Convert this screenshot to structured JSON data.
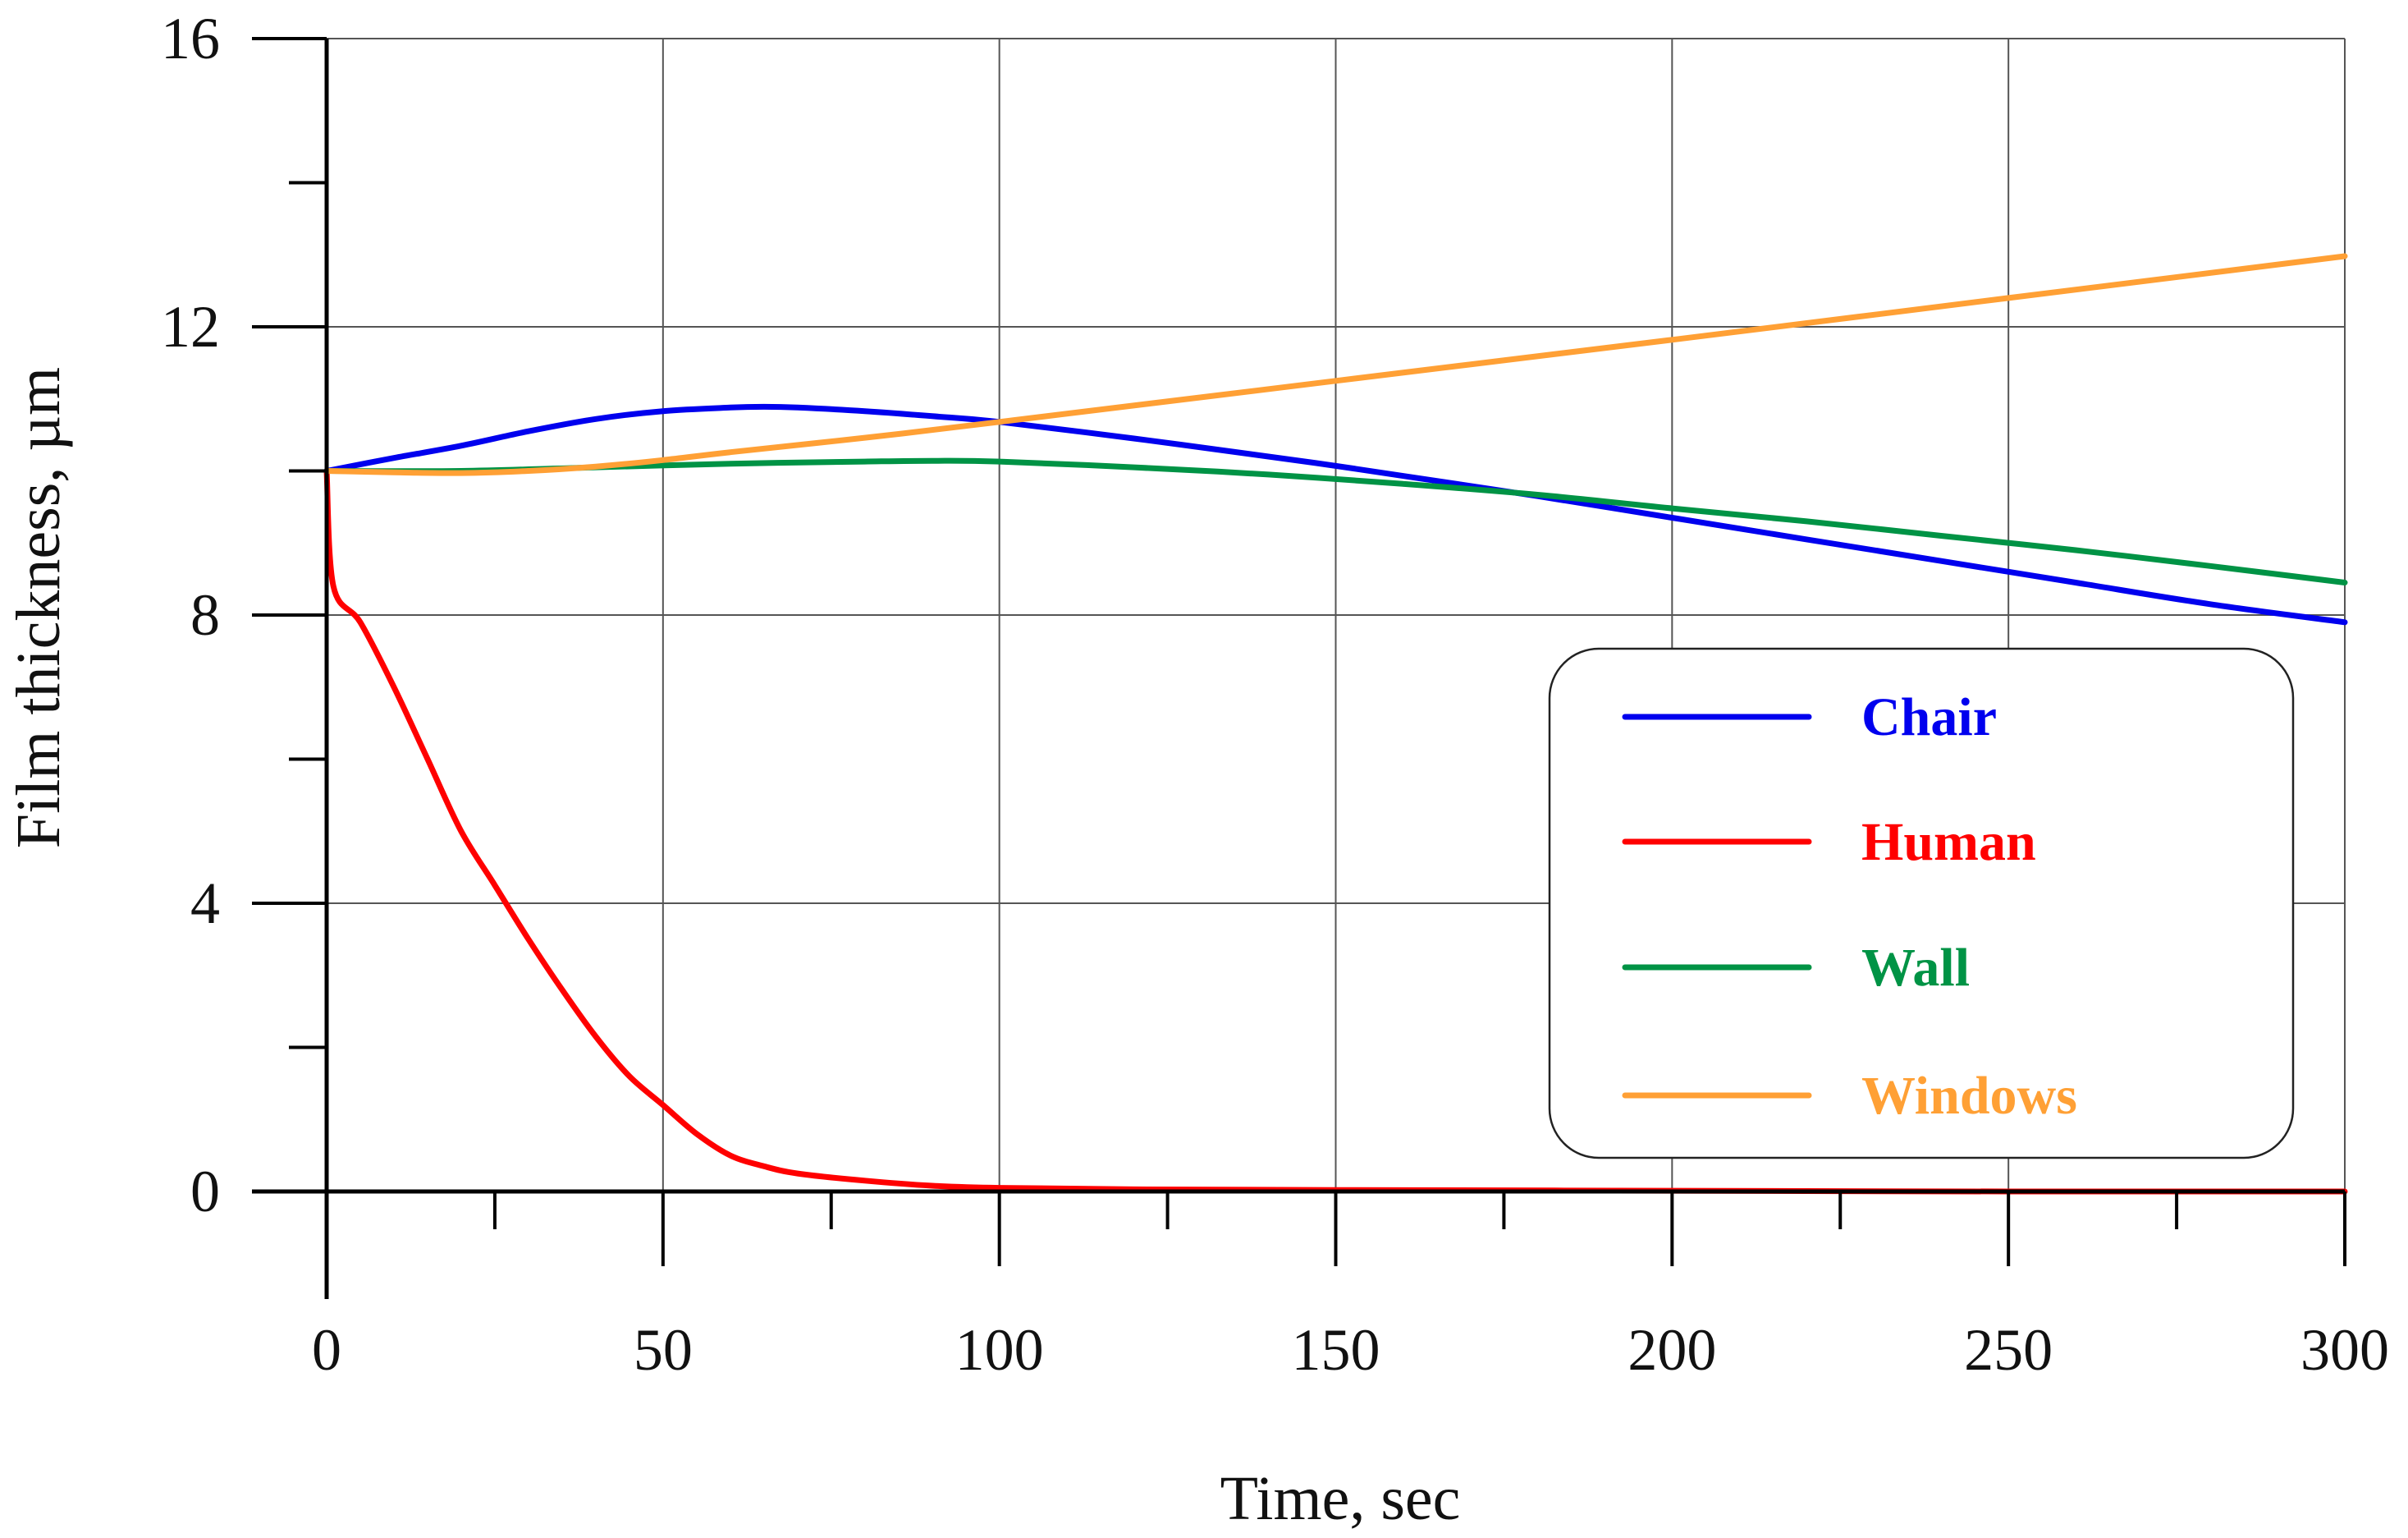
{
  "chart_data": {
    "type": "line",
    "title": "",
    "xlabel": "Time, sec",
    "ylabel": "Film thickness, µm",
    "xlim": [
      0,
      300
    ],
    "ylim": [
      0,
      16
    ],
    "x_ticks": [
      0,
      50,
      100,
      150,
      200,
      250,
      300
    ],
    "x_minor_ticks": [
      25,
      75,
      125,
      175,
      225,
      275
    ],
    "y_ticks": [
      0,
      4,
      8,
      12,
      16
    ],
    "y_minor_ticks": [
      2,
      6,
      10,
      14
    ],
    "grid": true,
    "legend_position": "right",
    "series": [
      {
        "name": "Chair",
        "color": "#0000ee",
        "x": [
          0,
          10,
          20,
          30,
          40,
          50,
          60,
          65,
          70,
          80,
          90,
          100,
          120,
          140,
          150,
          160,
          180,
          200,
          220,
          240,
          260,
          280,
          300
        ],
        "y": [
          10.0,
          10.18,
          10.35,
          10.55,
          10.72,
          10.83,
          10.88,
          10.89,
          10.88,
          10.83,
          10.76,
          10.68,
          10.45,
          10.2,
          10.07,
          9.93,
          9.65,
          9.35,
          9.05,
          8.75,
          8.45,
          8.15,
          7.9
        ]
      },
      {
        "name": "Human",
        "color": "#ff0000",
        "x": [
          0,
          1,
          5,
          10,
          15,
          20,
          25,
          30,
          35,
          40,
          45,
          50,
          55,
          60,
          65,
          70,
          80,
          90,
          100,
          120,
          150,
          200,
          250,
          300
        ],
        "y": [
          10.0,
          8.4,
          7.9,
          7.0,
          6.0,
          5.0,
          4.25,
          3.5,
          2.8,
          2.15,
          1.6,
          1.2,
          0.8,
          0.5,
          0.35,
          0.25,
          0.15,
          0.08,
          0.05,
          0.03,
          0.02,
          0.01,
          0.0,
          0.0
        ]
      },
      {
        "name": "Wall",
        "color": "#009345",
        "x": [
          0,
          20,
          40,
          60,
          80,
          90,
          100,
          120,
          140,
          160,
          180,
          200,
          220,
          240,
          260,
          280,
          300
        ],
        "y": [
          10.0,
          10.0,
          10.05,
          10.1,
          10.13,
          10.14,
          10.13,
          10.05,
          9.95,
          9.82,
          9.67,
          9.48,
          9.3,
          9.1,
          8.9,
          8.68,
          8.45
        ]
      },
      {
        "name": "Windows",
        "color": "#ffa035",
        "x": [
          0,
          10,
          20,
          30,
          40,
          50,
          60,
          80,
          100,
          150,
          200,
          250,
          300
        ],
        "y": [
          10.0,
          9.98,
          9.97,
          10.0,
          10.06,
          10.15,
          10.26,
          10.46,
          10.68,
          11.25,
          11.82,
          12.4,
          12.98
        ]
      }
    ]
  }
}
